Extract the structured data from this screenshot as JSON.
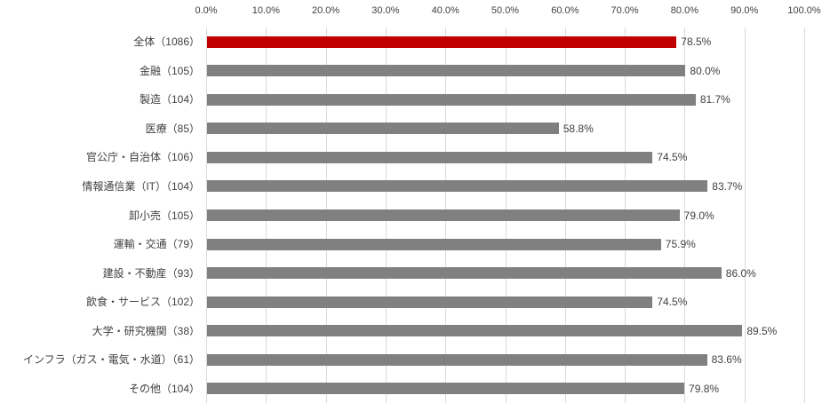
{
  "chart_data": {
    "type": "bar",
    "orientation": "horizontal",
    "title": "",
    "xlabel": "",
    "ylabel": "",
    "axis_position": "top",
    "xlim": [
      0,
      100
    ],
    "x_ticks": [
      "0.0%",
      "10.0%",
      "20.0%",
      "30.0%",
      "40.0%",
      "50.0%",
      "60.0%",
      "70.0%",
      "80.0%",
      "90.0%",
      "100.0%"
    ],
    "gridlines": true,
    "categories": [
      "全体（1086）",
      "金融（105）",
      "製造（104）",
      "医療（85）",
      "官公庁・自治体（106）",
      "情報通信業（IT）（104）",
      "卸小売（105）",
      "運輸・交通（79）",
      "建設・不動産（93）",
      "飲食・サービス（102）",
      "大学・研究機関（38）",
      "インフラ（ガス・電気・水道）（61）",
      "その他（104）"
    ],
    "values": [
      78.5,
      80.0,
      81.7,
      58.8,
      74.5,
      83.7,
      79.0,
      75.9,
      86.0,
      74.5,
      89.5,
      83.6,
      79.8
    ],
    "value_labels": [
      "78.5%",
      "80.0%",
      "81.7%",
      "58.8%",
      "74.5%",
      "83.7%",
      "79.0%",
      "75.9%",
      "86.0%",
      "74.5%",
      "89.5%",
      "83.6%",
      "79.8%"
    ],
    "highlight_index": 0,
    "colors": {
      "bar": "#808080",
      "highlight_bar": "#c00000",
      "gridline": "#d9d9d9",
      "text": "#404040"
    }
  }
}
